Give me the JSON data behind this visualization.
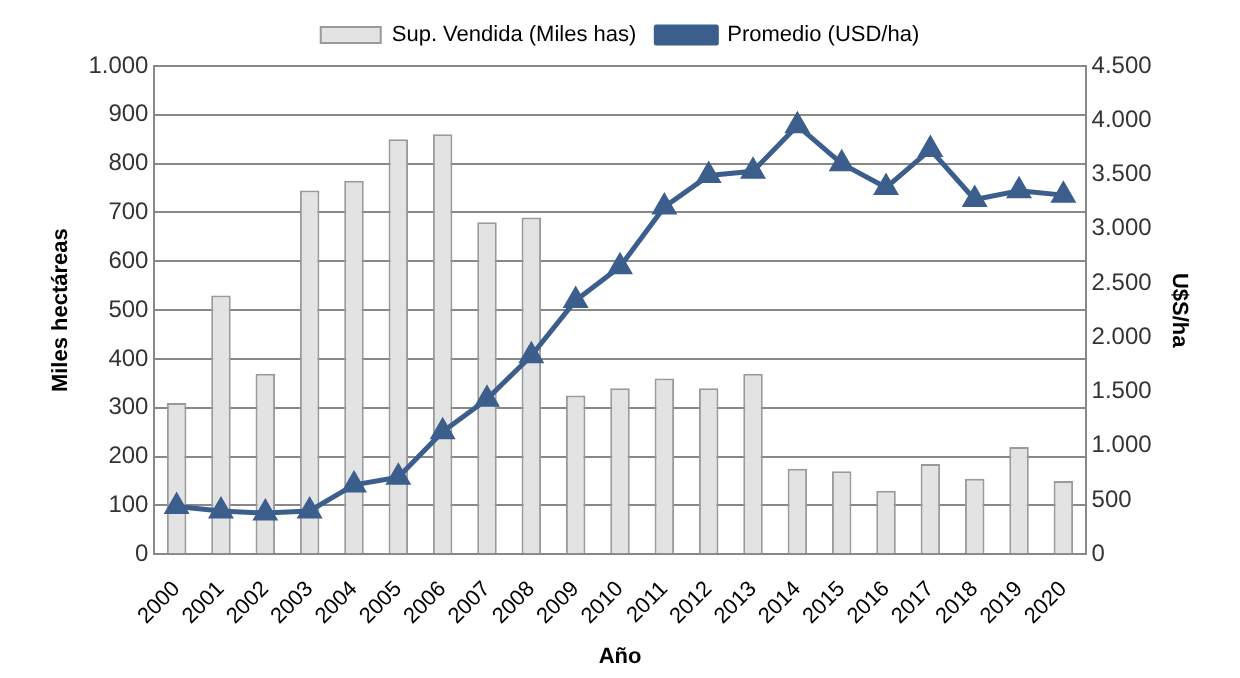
{
  "chart_data": {
    "type": "bar",
    "xlabel": "Año",
    "ylabel": "Miles hectáreas",
    "y2label": "U$S/ha",
    "categories": [
      "2000",
      "2001",
      "2002",
      "2003",
      "2004",
      "2005",
      "2006",
      "2007",
      "2008",
      "2009",
      "2010",
      "2011",
      "2012",
      "2013",
      "2014",
      "2015",
      "2016",
      "2017",
      "2018",
      "2019",
      "2020"
    ],
    "series": [
      {
        "name": "Sup. Vendida (Miles has)",
        "color": "#e3e3e3",
        "values": [
          310,
          530,
          370,
          745,
          765,
          850,
          860,
          680,
          690,
          325,
          340,
          360,
          340,
          370,
          175,
          170,
          130,
          185,
          155,
          220,
          150
        ]
      },
      {
        "name": "Promedio (USD/ha)",
        "type": "line",
        "axis": "y2",
        "color": "#3b5e8c",
        "marker": "triangle",
        "values": [
          440,
          400,
          380,
          400,
          640,
          710,
          1130,
          1430,
          1830,
          2340,
          2650,
          3200,
          3490,
          3530,
          3950,
          3600,
          3380,
          3730,
          3270,
          3350,
          3310
        ]
      }
    ],
    "ylim": [
      0,
      1000
    ],
    "yticks": [
      0,
      100,
      200,
      300,
      400,
      500,
      600,
      700,
      800,
      900,
      {
        "value": 1000,
        "label": "1.000"
      }
    ],
    "y2lim": [
      0,
      4500
    ],
    "y2ticks": [
      0,
      500,
      {
        "value": 1000,
        "label": "1.000"
      },
      {
        "value": 1500,
        "label": "1.500"
      },
      {
        "value": 2000,
        "label": "2.000"
      },
      {
        "value": 2500,
        "label": "2.500"
      },
      {
        "value": 3000,
        "label": "3.000"
      },
      {
        "value": 3500,
        "label": "3.500"
      },
      {
        "value": 4000,
        "label": "4.000"
      },
      {
        "value": 4500,
        "label": "4.500"
      }
    ],
    "grid": "y",
    "legend": "top"
  }
}
